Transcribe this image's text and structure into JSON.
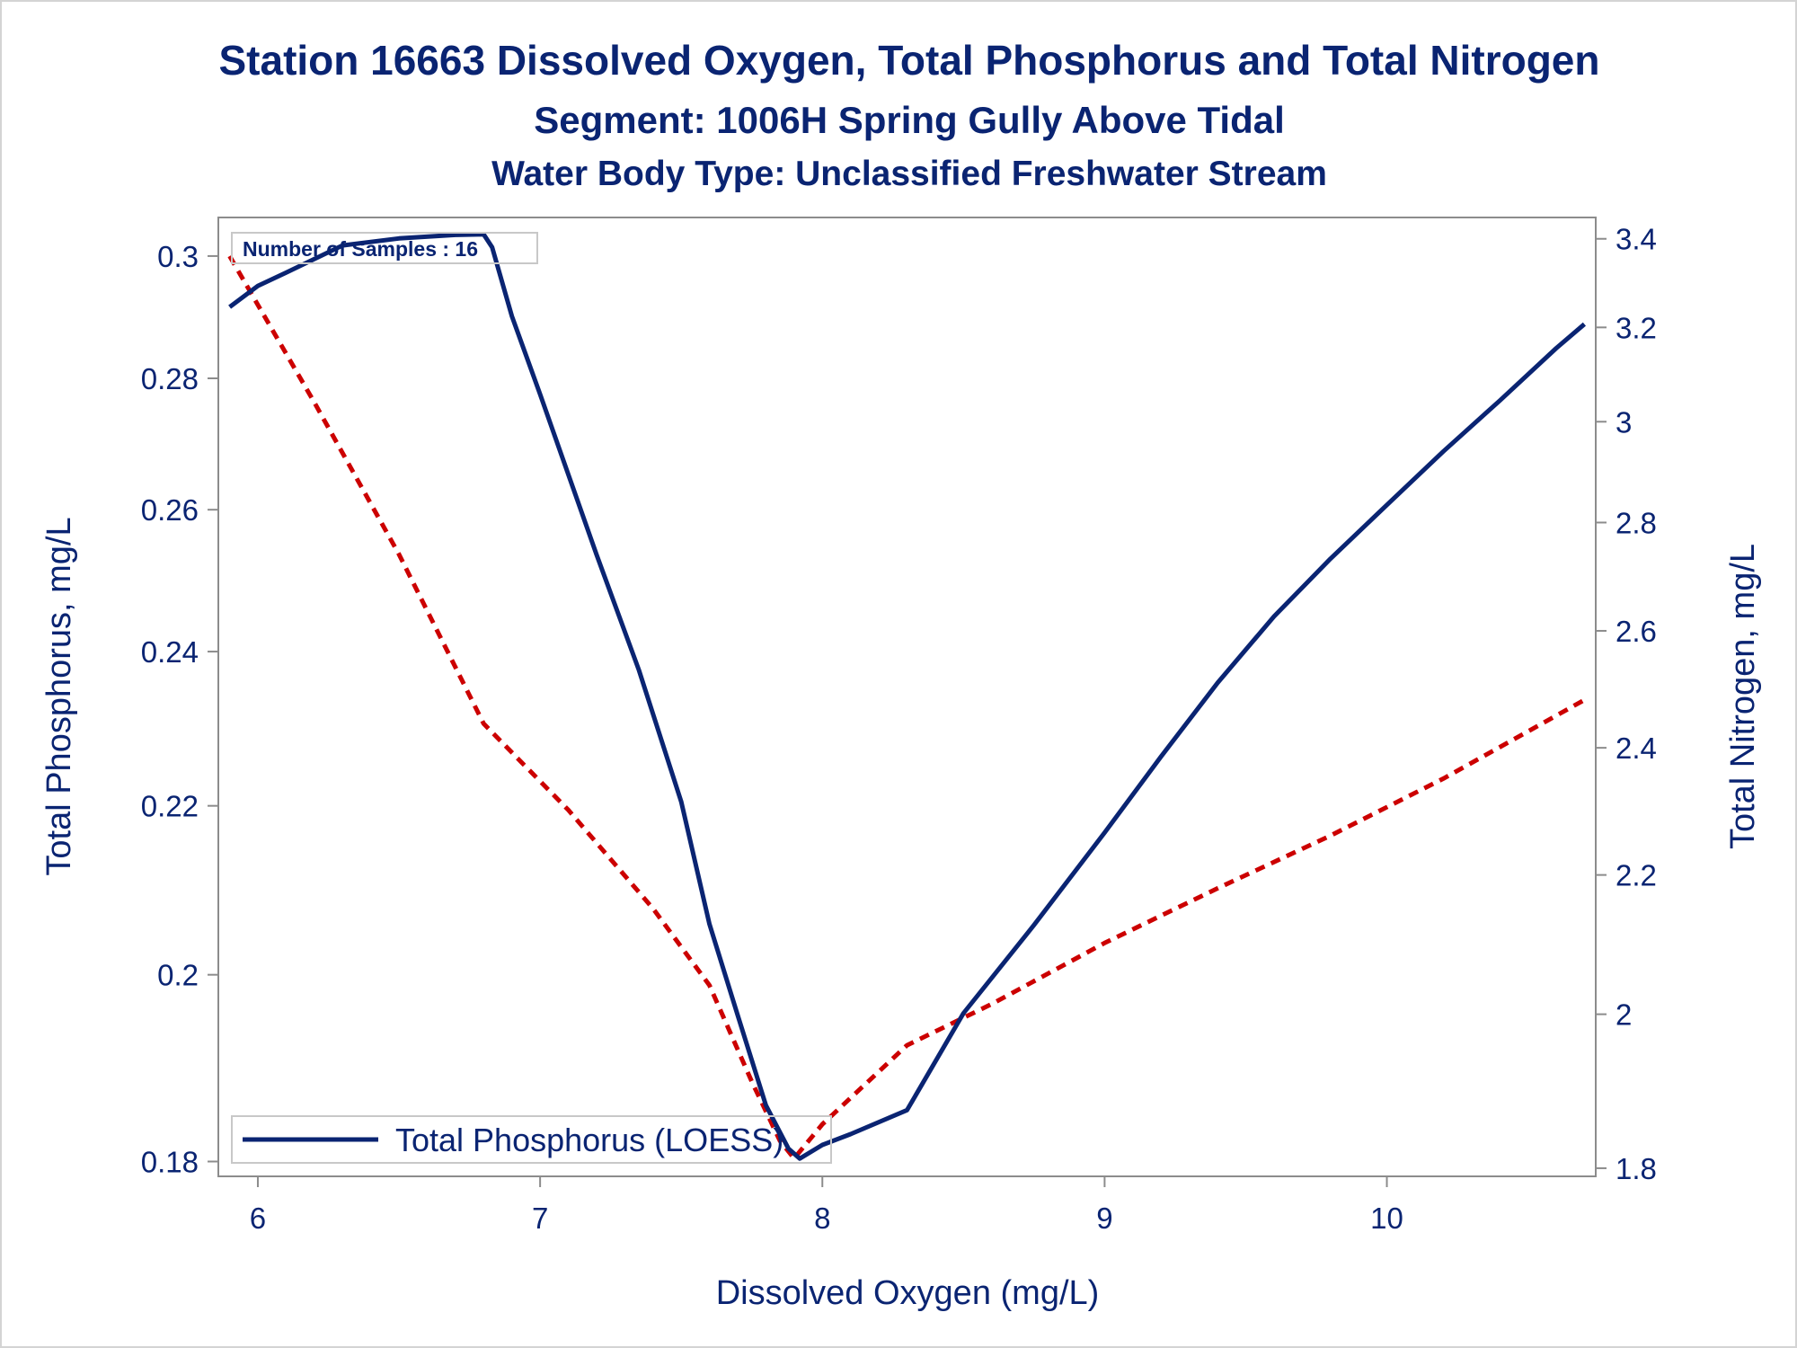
{
  "titles": {
    "line1": "Station 16663  Dissolved Oxygen, Total Phosphorus and Total Nitrogen",
    "line2": "Segment: 1006H  Spring Gully Above Tidal",
    "line3": "Water Body Type: Unclassified Freshwater Stream"
  },
  "inset": {
    "samples_text": "Number of Samples : 16"
  },
  "legend": {
    "entries": [
      "Total Phosphorus (LOESS)"
    ]
  },
  "colors": {
    "text": "#0a2472",
    "phosphorus": "#0a2472",
    "nitrogen": "#cc0000",
    "axis": "#8c8c8c",
    "frame": "#d4d4d4"
  },
  "chart_data": {
    "type": "line",
    "xlabel": "Dissolved Oxygen (mg/L)",
    "ylabel": "Total Phosphorus, mg/L",
    "y2label": "Total Nitrogen, mg/L",
    "xlim": [
      5.86,
      10.74
    ],
    "ylim": [
      0.1785,
      0.3066
    ],
    "y2lim": [
      1.79,
      3.45
    ],
    "ylog": true,
    "y2log": true,
    "xticks": [
      6,
      7,
      8,
      9,
      10
    ],
    "xtick_labels": [
      "6",
      "7",
      "8",
      "9",
      "10"
    ],
    "yticks": [
      0.18,
      0.2,
      0.22,
      0.24,
      0.26,
      0.28,
      0.3
    ],
    "ytick_labels": [
      "0.18",
      "0.2",
      "0.22",
      "0.24",
      "0.26",
      "0.28",
      "0.3"
    ],
    "y2ticks": [
      1.8,
      2.0,
      2.2,
      2.4,
      2.6,
      2.8,
      3.0,
      3.2,
      3.4
    ],
    "y2tick_labels": [
      "1.8",
      "2",
      "2.2",
      "2.4",
      "2.6",
      "2.8",
      "3",
      "3.2",
      "3.4"
    ],
    "series": [
      {
        "name": "Total Phosphorus (LOESS)",
        "axis": "left",
        "style": "solid",
        "color": "#0a2472",
        "x": [
          5.9,
          6.0,
          6.1,
          6.3,
          6.5,
          6.7,
          6.8,
          6.83,
          6.9,
          7.0,
          7.2,
          7.35,
          7.5,
          7.6,
          7.7,
          7.8,
          7.88,
          7.92,
          8.0,
          8.1,
          8.3,
          8.5,
          8.75,
          9.0,
          9.2,
          9.4,
          9.6,
          9.8,
          10.0,
          10.2,
          10.4,
          10.6,
          10.7
        ],
        "y": [
          0.2915,
          0.295,
          0.2972,
          0.3018,
          0.303,
          0.3036,
          0.3037,
          0.3015,
          0.29,
          0.2775,
          0.2535,
          0.2375,
          0.2205,
          0.2058,
          0.1955,
          0.1858,
          0.1813,
          0.1803,
          0.1817,
          0.1828,
          0.1853,
          0.1957,
          0.2057,
          0.2167,
          0.2262,
          0.2358,
          0.2448,
          0.2529,
          0.2607,
          0.2687,
          0.2765,
          0.2848,
          0.2887
        ]
      },
      {
        "name": "",
        "axis": "right",
        "style": "dashed",
        "color": "#cc0000",
        "x": [
          5.9,
          6.2,
          6.5,
          6.8,
          7.1,
          7.4,
          7.6,
          7.75,
          7.85,
          7.9,
          8.0,
          8.3,
          8.6,
          9.0,
          9.4,
          9.8,
          10.2,
          10.7
        ],
        "y": [
          3.36,
          3.04,
          2.74,
          2.44,
          2.3,
          2.15,
          2.04,
          1.91,
          1.834,
          1.812,
          1.855,
          1.958,
          2.014,
          2.1,
          2.18,
          2.26,
          2.35,
          2.48
        ]
      }
    ]
  }
}
